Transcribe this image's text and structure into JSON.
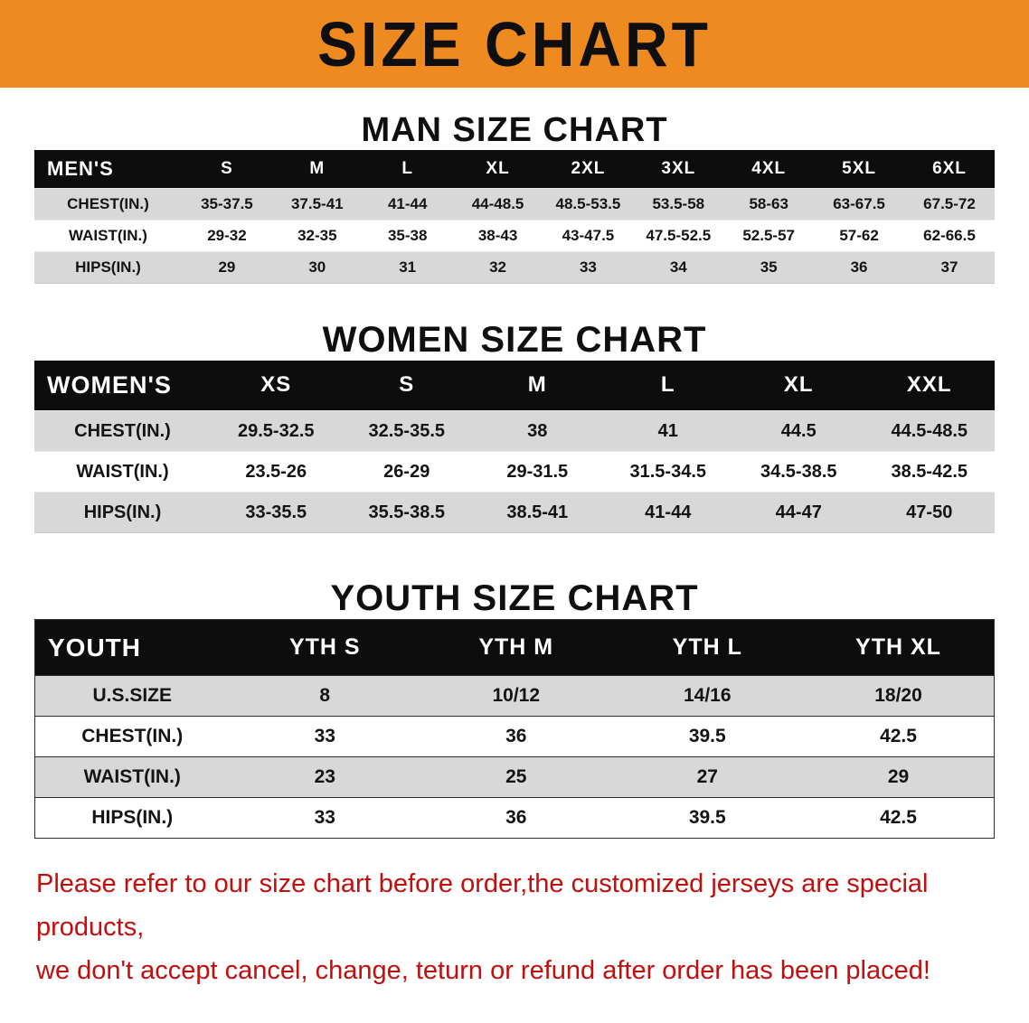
{
  "banner": {
    "title": "SIZE CHART",
    "bg_color": "#ee8a1f"
  },
  "sections": [
    {
      "title": "MAN SIZE CHART",
      "header": [
        "MEN'S",
        "S",
        "M",
        "L",
        "XL",
        "2XL",
        "3XL",
        "4XL",
        "5XL",
        "6XL"
      ],
      "rows": [
        [
          "CHEST(IN.)",
          "35-37.5",
          "37.5-41",
          "41-44",
          "44-48.5",
          "48.5-53.5",
          "53.5-58",
          "58-63",
          "63-67.5",
          "67.5-72"
        ],
        [
          "WAIST(IN.)",
          "29-32",
          "32-35",
          "35-38",
          "38-43",
          "43-47.5",
          "47.5-52.5",
          "52.5-57",
          "57-62",
          "62-66.5"
        ],
        [
          "HIPS(IN.)",
          "29",
          "30",
          "31",
          "32",
          "33",
          "34",
          "35",
          "36",
          "37"
        ]
      ]
    },
    {
      "title": "WOMEN SIZE CHART",
      "header": [
        "WOMEN'S",
        "XS",
        "S",
        "M",
        "L",
        "XL",
        "XXL"
      ],
      "rows": [
        [
          "CHEST(IN.)",
          "29.5-32.5",
          "32.5-35.5",
          "38",
          "41",
          "44.5",
          "44.5-48.5"
        ],
        [
          "WAIST(IN.)",
          "23.5-26",
          "26-29",
          "29-31.5",
          "31.5-34.5",
          "34.5-38.5",
          "38.5-42.5"
        ],
        [
          "HIPS(IN.)",
          "33-35.5",
          "35.5-38.5",
          "38.5-41",
          "41-44",
          "44-47",
          "47-50"
        ]
      ]
    },
    {
      "title": "YOUTH SIZE CHART",
      "header": [
        "YOUTH",
        "YTH S",
        "YTH M",
        "YTH L",
        "YTH XL"
      ],
      "rows": [
        [
          "U.S.SIZE",
          "8",
          "10/12",
          "14/16",
          "18/20"
        ],
        [
          "CHEST(IN.)",
          "33",
          "36",
          "39.5",
          "42.5"
        ],
        [
          "WAIST(IN.)",
          "23",
          "25",
          "27",
          "29"
        ],
        [
          "HIPS(IN.)",
          "33",
          "36",
          "39.5",
          "42.5"
        ]
      ]
    }
  ],
  "footer": {
    "line1": "Please refer to our size chart before order,the customized jerseys are special products,",
    "line2": "we don't accept cancel, change, teturn or refund after order has been placed!",
    "text_color": "#c40d0d"
  }
}
